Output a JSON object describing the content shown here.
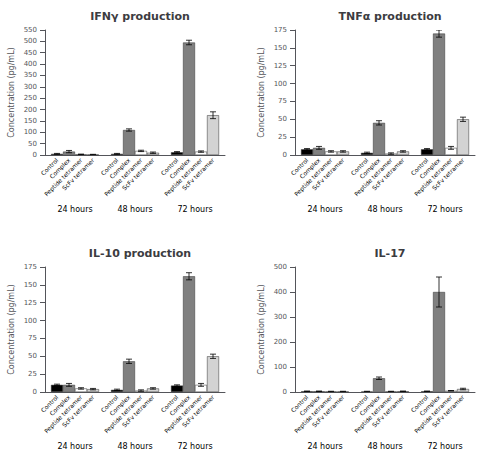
{
  "chart_data": [
    {
      "type": "bar",
      "title": "IFNγ production",
      "ylabel": "Concentration (pg/mL)",
      "categories": [
        "24 hours",
        "48 hours",
        "72 hours"
      ],
      "ylim": [
        0,
        550
      ],
      "yticks": [
        0,
        50,
        100,
        150,
        200,
        250,
        300,
        350,
        400,
        450,
        500,
        550
      ],
      "grid": false,
      "series": [
        {
          "name": "Control",
          "color": "#000000",
          "values": [
            5,
            5,
            12
          ],
          "errors": [
            2,
            2,
            3
          ]
        },
        {
          "name": "Complex",
          "color": "#808080",
          "values": [
            15,
            110,
            495
          ],
          "errors": [
            5,
            5,
            10
          ]
        },
        {
          "name": "Peptide tetramer",
          "color": "#ffffff",
          "values": [
            3,
            18,
            15
          ],
          "errors": [
            1,
            3,
            3
          ]
        },
        {
          "name": "ScFv tetramer",
          "color": "#d3d3d3",
          "values": [
            2,
            10,
            175
          ],
          "errors": [
            1,
            3,
            15
          ]
        }
      ]
    },
    {
      "type": "bar",
      "title": "TNFα production",
      "ylabel": "Concentration (pg/mL)",
      "categories": [
        "24 hours",
        "48 hours",
        "72 hours"
      ],
      "ylim": [
        0,
        175
      ],
      "yticks": [
        0,
        25,
        50,
        75,
        100,
        125,
        150,
        175
      ],
      "grid": false,
      "series": [
        {
          "name": "Control",
          "color": "#000000",
          "values": [
            8,
            3,
            8
          ],
          "errors": [
            1,
            1,
            1
          ]
        },
        {
          "name": "Complex",
          "color": "#808080",
          "values": [
            10,
            45,
            170
          ],
          "errors": [
            2,
            3,
            5
          ]
        },
        {
          "name": "Peptide tetramer",
          "color": "#ffffff",
          "values": [
            5,
            2,
            10
          ],
          "errors": [
            1,
            1,
            2
          ]
        },
        {
          "name": "ScFv tetramer",
          "color": "#d3d3d3",
          "values": [
            5,
            5,
            50
          ],
          "errors": [
            1,
            1,
            3
          ]
        }
      ]
    },
    {
      "type": "bar",
      "title": "IL-10 production",
      "ylabel": "Concentration (pg/mL)",
      "categories": [
        "24 hours",
        "48 hours",
        "72 hours"
      ],
      "ylim": [
        0,
        175
      ],
      "yticks": [
        0,
        25,
        50,
        75,
        100,
        125,
        150,
        175
      ],
      "grid": false,
      "series": [
        {
          "name": "Control",
          "color": "#000000",
          "values": [
            10,
            3,
            9
          ],
          "errors": [
            1,
            1,
            1
          ]
        },
        {
          "name": "Complex",
          "color": "#808080",
          "values": [
            10,
            43,
            162
          ],
          "errors": [
            2,
            3,
            5
          ]
        },
        {
          "name": "Peptide tetramer",
          "color": "#ffffff",
          "values": [
            5,
            2,
            10
          ],
          "errors": [
            1,
            1,
            2
          ]
        },
        {
          "name": "ScFv tetramer",
          "color": "#d3d3d3",
          "values": [
            4,
            5,
            50
          ],
          "errors": [
            1,
            1,
            3
          ]
        }
      ]
    },
    {
      "type": "bar",
      "title": "IL-17",
      "ylabel": "Concentration (pg/mL)",
      "categories": [
        "24 hours",
        "48 hours",
        "72 hours"
      ],
      "ylim": [
        0,
        500
      ],
      "yticks": [
        0,
        100,
        200,
        300,
        400,
        500
      ],
      "grid": false,
      "series": [
        {
          "name": "Control",
          "color": "#000000",
          "values": [
            3,
            2,
            3
          ],
          "errors": [
            1,
            1,
            1
          ]
        },
        {
          "name": "Complex",
          "color": "#808080",
          "values": [
            3,
            55,
            400
          ],
          "errors": [
            1,
            5,
            60
          ]
        },
        {
          "name": "Peptide tetramer",
          "color": "#ffffff",
          "values": [
            2,
            2,
            5
          ],
          "errors": [
            1,
            1,
            1
          ]
        },
        {
          "name": "ScFv tetramer",
          "color": "#d3d3d3",
          "values": [
            2,
            3,
            12
          ],
          "errors": [
            1,
            1,
            3
          ]
        }
      ]
    }
  ]
}
